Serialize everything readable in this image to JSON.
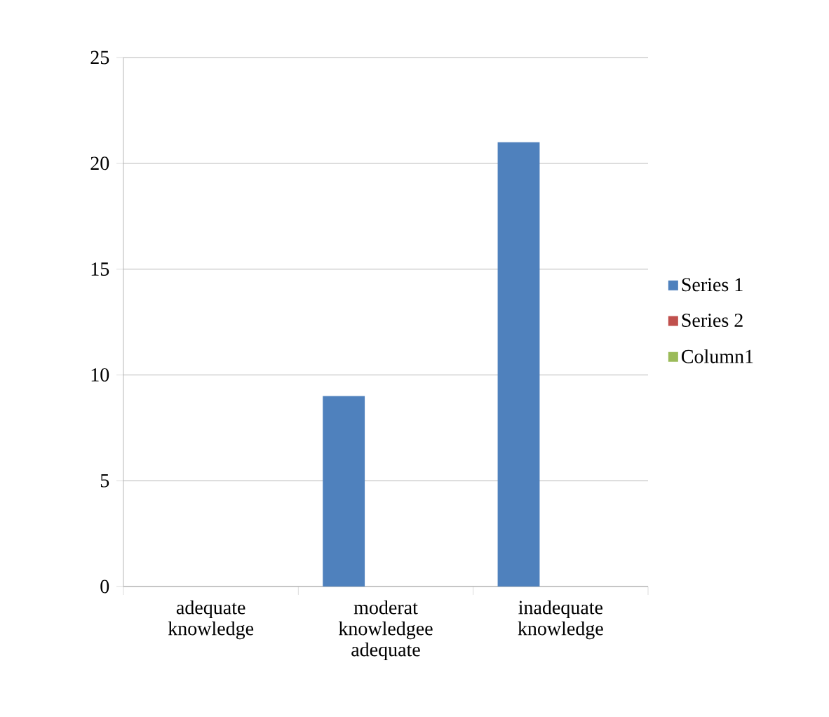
{
  "chart_data": {
    "type": "bar",
    "categories": [
      "adequate knowledge",
      "moderat knowledgee adequate",
      "inadequate knowledge"
    ],
    "series": [
      {
        "name": "Series 1",
        "color": "#4f81bd",
        "values": [
          null,
          9,
          21
        ]
      },
      {
        "name": "Series 2",
        "color": "#c0504d",
        "values": [
          null,
          null,
          null
        ]
      },
      {
        "name": "Column1",
        "color": "#9bbb59",
        "values": [
          null,
          null,
          null
        ]
      }
    ],
    "ylim": [
      0,
      25
    ],
    "yticks": [
      0,
      5,
      10,
      15,
      20,
      25
    ],
    "grid": "y",
    "legend": "right"
  }
}
